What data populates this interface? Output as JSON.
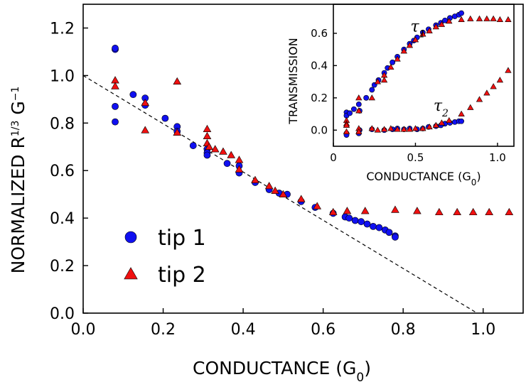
{
  "chart_data": [
    {
      "type": "scatter",
      "title": "",
      "xlabel": "CONDUCTANCE (G",
      "xlabel_sub": "0",
      "xlabel_end": ")",
      "ylabel": "NORMALIZED R",
      "ylabel_sup": "1/3",
      "ylabel_g": " G",
      "ylabel_g_sup": "−1",
      "xlim": [
        0.0,
        1.1
      ],
      "ylim": [
        0.0,
        1.3
      ],
      "xticks": [
        0.0,
        0.2,
        0.4,
        0.6,
        0.8,
        1.0
      ],
      "xtick_labels": [
        "0.0",
        "0.2",
        "0.4",
        "0.6",
        "0.8",
        "1.0"
      ],
      "yticks": [
        0.0,
        0.2,
        0.4,
        0.6,
        0.8,
        1.0,
        1.2
      ],
      "ytick_labels": [
        "0.0",
        "0.2",
        "0.4",
        "0.6",
        "0.8",
        "1.0",
        "1.2"
      ],
      "grid": false,
      "legend_position": "bottom-left",
      "fit_line": {
        "style": "dashed",
        "x": [
          0.0,
          0.985
        ],
        "y": [
          1.0,
          0.0
        ]
      },
      "series": [
        {
          "name": "tip 1",
          "marker": "circle",
          "color": "#1010f0",
          "points": [
            [
              0.08,
              1.11
            ],
            [
              0.08,
              1.115
            ],
            [
              0.08,
              0.87
            ],
            [
              0.08,
              0.805
            ],
            [
              0.125,
              0.92
            ],
            [
              0.155,
              0.905
            ],
            [
              0.155,
              0.875
            ],
            [
              0.205,
              0.82
            ],
            [
              0.235,
              0.785
            ],
            [
              0.235,
              0.765
            ],
            [
              0.275,
              0.705
            ],
            [
              0.31,
              0.69
            ],
            [
              0.31,
              0.675
            ],
            [
              0.31,
              0.665
            ],
            [
              0.36,
              0.63
            ],
            [
              0.39,
              0.59
            ],
            [
              0.39,
              0.62
            ],
            [
              0.43,
              0.55
            ],
            [
              0.465,
              0.52
            ],
            [
              0.49,
              0.505
            ],
            [
              0.51,
              0.5
            ],
            [
              0.545,
              0.47
            ],
            [
              0.58,
              0.445
            ],
            [
              0.625,
              0.42
            ],
            [
              0.655,
              0.405
            ],
            [
              0.665,
              0.4
            ],
            [
              0.68,
              0.39
            ],
            [
              0.695,
              0.385
            ],
            [
              0.71,
              0.375
            ],
            [
              0.725,
              0.365
            ],
            [
              0.74,
              0.36
            ],
            [
              0.755,
              0.35
            ],
            [
              0.765,
              0.34
            ],
            [
              0.78,
              0.325
            ],
            [
              0.78,
              0.32
            ]
          ]
        },
        {
          "name": "tip 2",
          "marker": "triangle",
          "color": "#f01010",
          "points": [
            [
              0.08,
              0.98
            ],
            [
              0.08,
              0.955
            ],
            [
              0.155,
              0.885
            ],
            [
              0.155,
              0.77
            ],
            [
              0.235,
              0.975
            ],
            [
              0.235,
              0.76
            ],
            [
              0.31,
              0.775
            ],
            [
              0.31,
              0.745
            ],
            [
              0.31,
              0.715
            ],
            [
              0.315,
              0.7
            ],
            [
              0.33,
              0.69
            ],
            [
              0.35,
              0.68
            ],
            [
              0.37,
              0.665
            ],
            [
              0.39,
              0.645
            ],
            [
              0.39,
              0.605
            ],
            [
              0.43,
              0.56
            ],
            [
              0.465,
              0.535
            ],
            [
              0.48,
              0.515
            ],
            [
              0.5,
              0.5
            ],
            [
              0.545,
              0.48
            ],
            [
              0.585,
              0.45
            ],
            [
              0.625,
              0.425
            ],
            [
              0.66,
              0.43
            ],
            [
              0.705,
              0.43
            ],
            [
              0.78,
              0.435
            ],
            [
              0.835,
              0.43
            ],
            [
              0.89,
              0.425
            ],
            [
              0.935,
              0.425
            ],
            [
              0.975,
              0.425
            ],
            [
              1.015,
              0.425
            ],
            [
              1.065,
              0.425
            ]
          ]
        }
      ]
    },
    {
      "type": "scatter",
      "title": "",
      "inset": true,
      "xlabel": "CONDUCTANCE (G",
      "xlabel_sub": "0",
      "xlabel_end": ")",
      "ylabel": "TRANSMISSION",
      "xlim": [
        0.0,
        1.1
      ],
      "ylim": [
        -0.1,
        0.78
      ],
      "xticks": [
        0.0,
        0.5,
        1.0
      ],
      "xtick_labels": [
        "0",
        "0.5",
        "1.0"
      ],
      "yticks": [
        0.0,
        0.2,
        0.4,
        0.6
      ],
      "ytick_labels": [
        "0.0",
        "0.2",
        "0.4",
        "0.6"
      ],
      "grid": false,
      "annotations": [
        {
          "text": "τ",
          "sub": "1",
          "x": 0.47,
          "y": 0.61
        },
        {
          "text": "τ",
          "sub": "2",
          "x": 0.61,
          "y": 0.12
        }
      ],
      "series": [
        {
          "name": "tip 1 τ1",
          "marker": "circle",
          "color": "#1010f0",
          "points": [
            [
              0.08,
              0.11
            ],
            [
              0.08,
              0.09
            ],
            [
              0.1,
              0.105
            ],
            [
              0.125,
              0.13
            ],
            [
              0.155,
              0.16
            ],
            [
              0.16,
              0.12
            ],
            [
              0.2,
              0.2
            ],
            [
              0.235,
              0.25
            ],
            [
              0.25,
              0.28
            ],
            [
              0.275,
              0.31
            ],
            [
              0.31,
              0.355
            ],
            [
              0.33,
              0.385
            ],
            [
              0.36,
              0.42
            ],
            [
              0.39,
              0.455
            ],
            [
              0.43,
              0.5
            ],
            [
              0.465,
              0.535
            ],
            [
              0.49,
              0.555
            ],
            [
              0.51,
              0.575
            ],
            [
              0.545,
              0.605
            ],
            [
              0.58,
              0.625
            ],
            [
              0.625,
              0.65
            ],
            [
              0.655,
              0.665
            ],
            [
              0.68,
              0.68
            ],
            [
              0.71,
              0.695
            ],
            [
              0.74,
              0.705
            ],
            [
              0.765,
              0.715
            ],
            [
              0.78,
              0.725
            ]
          ]
        },
        {
          "name": "tip 1 τ2",
          "marker": "circle",
          "color": "#1010f0",
          "points": [
            [
              0.08,
              -0.02
            ],
            [
              0.08,
              -0.03
            ],
            [
              0.155,
              -0.02
            ],
            [
              0.16,
              0.0
            ],
            [
              0.235,
              0.005
            ],
            [
              0.31,
              0.0
            ],
            [
              0.36,
              0.005
            ],
            [
              0.39,
              0.01
            ],
            [
              0.43,
              0.005
            ],
            [
              0.465,
              0.01
            ],
            [
              0.51,
              0.005
            ],
            [
              0.545,
              0.01
            ],
            [
              0.58,
              0.02
            ],
            [
              0.625,
              0.025
            ],
            [
              0.655,
              0.03
            ],
            [
              0.68,
              0.04
            ],
            [
              0.71,
              0.045
            ],
            [
              0.74,
              0.05
            ],
            [
              0.765,
              0.055
            ],
            [
              0.78,
              0.055
            ]
          ]
        },
        {
          "name": "tip 2 τ1",
          "marker": "triangle",
          "color": "#f01010",
          "points": [
            [
              0.08,
              0.06
            ],
            [
              0.08,
              0.04
            ],
            [
              0.155,
              0.2
            ],
            [
              0.155,
              0.12
            ],
            [
              0.235,
              0.2
            ],
            [
              0.27,
              0.3
            ],
            [
              0.31,
              0.34
            ],
            [
              0.31,
              0.31
            ],
            [
              0.35,
              0.39
            ],
            [
              0.39,
              0.44
            ],
            [
              0.43,
              0.49
            ],
            [
              0.465,
              0.525
            ],
            [
              0.5,
              0.56
            ],
            [
              0.545,
              0.595
            ],
            [
              0.585,
              0.615
            ],
            [
              0.625,
              0.64
            ],
            [
              0.66,
              0.655
            ],
            [
              0.705,
              0.675
            ],
            [
              0.78,
              0.685
            ],
            [
              0.835,
              0.69
            ],
            [
              0.89,
              0.69
            ],
            [
              0.935,
              0.69
            ],
            [
              0.975,
              0.69
            ],
            [
              1.015,
              0.685
            ],
            [
              1.065,
              0.685
            ]
          ]
        },
        {
          "name": "tip 2 τ2",
          "marker": "triangle",
          "color": "#f01010",
          "points": [
            [
              0.08,
              0.03
            ],
            [
              0.08,
              -0.01
            ],
            [
              0.155,
              0.01
            ],
            [
              0.155,
              -0.01
            ],
            [
              0.235,
              0.01
            ],
            [
              0.27,
              0.0
            ],
            [
              0.31,
              0.005
            ],
            [
              0.35,
              0.01
            ],
            [
              0.39,
              0.005
            ],
            [
              0.43,
              0.005
            ],
            [
              0.465,
              0.005
            ],
            [
              0.5,
              0.01
            ],
            [
              0.545,
              0.01
            ],
            [
              0.585,
              0.02
            ],
            [
              0.625,
              0.03
            ],
            [
              0.66,
              0.045
            ],
            [
              0.705,
              0.06
            ],
            [
              0.78,
              0.1
            ],
            [
              0.835,
              0.14
            ],
            [
              0.89,
              0.19
            ],
            [
              0.935,
              0.23
            ],
            [
              0.975,
              0.27
            ],
            [
              1.015,
              0.31
            ],
            [
              1.065,
              0.37
            ]
          ]
        }
      ]
    }
  ],
  "legend": {
    "items": [
      {
        "label": "tip 1",
        "marker": "circle",
        "color": "#1010f0"
      },
      {
        "label": "tip 2",
        "marker": "triangle",
        "color": "#f01010"
      }
    ]
  }
}
